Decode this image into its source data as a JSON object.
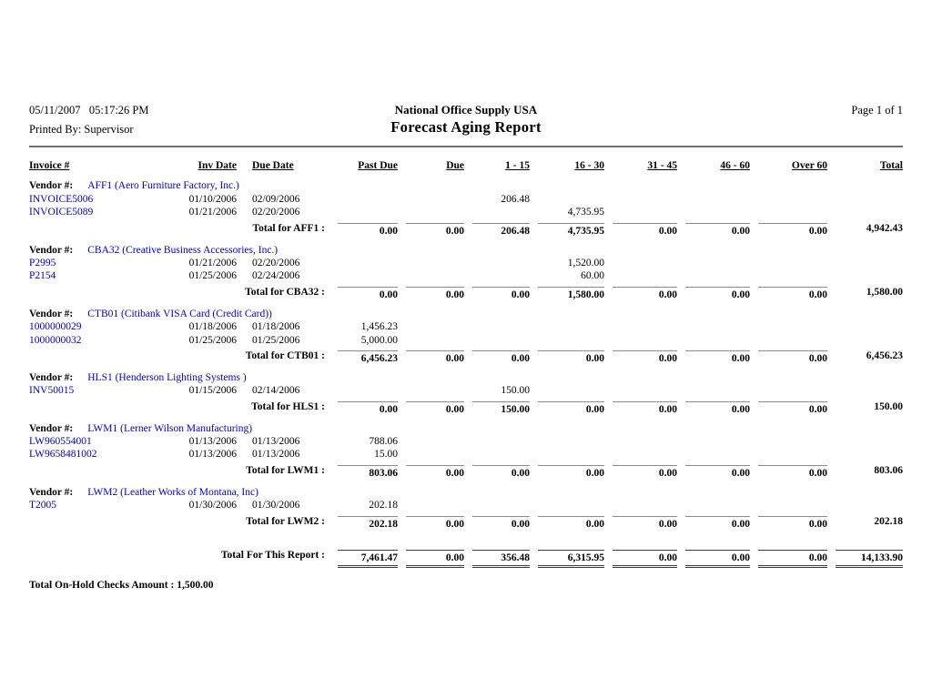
{
  "header": {
    "datetime": "05/11/2007   05:17:26 PM",
    "printed_by": "Printed By: Supervisor",
    "company": "National Office Supply USA",
    "title": "Forecast Aging Report",
    "page": "Page 1 of  1"
  },
  "columns": [
    "Invoice #",
    "Inv Date",
    "Due Date",
    "Past Due",
    "Due",
    "1 - 15",
    "16 - 30",
    "31 - 45",
    "46 - 60",
    "Over 60",
    "Total"
  ],
  "vendor_label": "Vendor #:",
  "vendors": [
    {
      "name": "AFF1 (Aero Furniture Factory, Inc.)",
      "invoices": [
        {
          "id": "INVOICE5006",
          "inv_date": "01/10/2006",
          "due_date": "02/09/2006",
          "amounts": [
            "",
            "",
            "206.48",
            "",
            "",
            "",
            ""
          ],
          "total": ""
        },
        {
          "id": "INVOICE5089",
          "inv_date": "01/21/2006",
          "due_date": "02/20/2006",
          "amounts": [
            "",
            "",
            "",
            "4,735.95",
            "",
            "",
            ""
          ],
          "total": ""
        }
      ],
      "total_label": "Total for AFF1 :",
      "totals": [
        "0.00",
        "0.00",
        "206.48",
        "4,735.95",
        "0.00",
        "0.00",
        "0.00"
      ],
      "total": "4,942.43"
    },
    {
      "name": "CBA32 (Creative Business Accessories, Inc.)",
      "invoices": [
        {
          "id": "P2995",
          "inv_date": "01/21/2006",
          "due_date": "02/20/2006",
          "amounts": [
            "",
            "",
            "",
            "1,520.00",
            "",
            "",
            ""
          ],
          "total": ""
        },
        {
          "id": "P2154",
          "inv_date": "01/25/2006",
          "due_date": "02/24/2006",
          "amounts": [
            "",
            "",
            "",
            "60.00",
            "",
            "",
            ""
          ],
          "total": ""
        }
      ],
      "total_label": "Total for CBA32 :",
      "totals": [
        "0.00",
        "0.00",
        "0.00",
        "1,580.00",
        "0.00",
        "0.00",
        "0.00"
      ],
      "total": "1,580.00"
    },
    {
      "name": "CTB01 (Citibank VISA Card (Credit Card))",
      "invoices": [
        {
          "id": "1000000029",
          "inv_date": "01/18/2006",
          "due_date": "01/18/2006",
          "amounts": [
            "1,456.23",
            "",
            "",
            "",
            "",
            "",
            ""
          ],
          "total": ""
        },
        {
          "id": "1000000032",
          "inv_date": "01/25/2006",
          "due_date": "01/25/2006",
          "amounts": [
            "5,000.00",
            "",
            "",
            "",
            "",
            "",
            ""
          ],
          "total": ""
        }
      ],
      "total_label": "Total for CTB01 :",
      "totals": [
        "6,456.23",
        "0.00",
        "0.00",
        "0.00",
        "0.00",
        "0.00",
        "0.00"
      ],
      "total": "6,456.23"
    },
    {
      "name": "HLS1 (Henderson Lighting Systems )",
      "invoices": [
        {
          "id": "INV50015",
          "inv_date": "01/15/2006",
          "due_date": "02/14/2006",
          "amounts": [
            "",
            "",
            "150.00",
            "",
            "",
            "",
            ""
          ],
          "total": ""
        }
      ],
      "total_label": "Total for HLS1 :",
      "totals": [
        "0.00",
        "0.00",
        "150.00",
        "0.00",
        "0.00",
        "0.00",
        "0.00"
      ],
      "total": "150.00"
    },
    {
      "name": "LWM1 (Lerner Wilson Manufacturing)",
      "invoices": [
        {
          "id": "LW960554001",
          "inv_date": "01/13/2006",
          "due_date": "01/13/2006",
          "amounts": [
            "788.06",
            "",
            "",
            "",
            "",
            "",
            ""
          ],
          "total": ""
        },
        {
          "id": "LW9658481002",
          "inv_date": "01/13/2006",
          "due_date": "01/13/2006",
          "amounts": [
            "15.00",
            "",
            "",
            "",
            "",
            "",
            ""
          ],
          "total": ""
        }
      ],
      "total_label": "Total for LWM1 :",
      "totals": [
        "803.06",
        "0.00",
        "0.00",
        "0.00",
        "0.00",
        "0.00",
        "0.00"
      ],
      "total": "803.06"
    },
    {
      "name": "LWM2 (Leather Works of Montana, Inc)",
      "invoices": [
        {
          "id": "T2005",
          "inv_date": "01/30/2006",
          "due_date": "01/30/2006",
          "amounts": [
            "202.18",
            "",
            "",
            "",
            "",
            "",
            ""
          ],
          "total": ""
        }
      ],
      "total_label": "Total for LWM2 :",
      "totals": [
        "202.18",
        "0.00",
        "0.00",
        "0.00",
        "0.00",
        "0.00",
        "0.00"
      ],
      "total": "202.18"
    }
  ],
  "report_total": {
    "label": "Total For This Report :",
    "amounts": [
      "7,461.47",
      "0.00",
      "356.48",
      "6,315.95",
      "0.00",
      "0.00",
      "0.00"
    ],
    "total": "14,133.90"
  },
  "footer": {
    "on_hold": "Total On-Hold Checks Amount : 1,500.00"
  },
  "colors": {
    "link_blue": "#0000cc",
    "rule_gray": "#8c8c8c",
    "grand_rule": "#3c3c3c"
  }
}
